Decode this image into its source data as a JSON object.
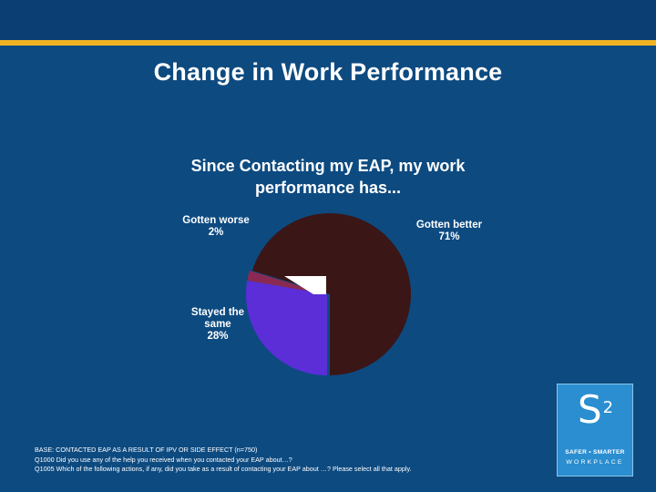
{
  "slide": {
    "title": "Change in Work Performance",
    "footnotes": [
      "BASE: CONTACTED EAP AS A RESULT OF IPV OR SIDE EFFECT (n=750)",
      "Q1000  Did you use any of the help you received when you contacted your EAP about…?",
      "Q1005  Which of the following actions, if any, did you take as a result of contacting your EAP about …?  Please select all that apply."
    ],
    "logo": {
      "mark": "S",
      "superscript": "2",
      "line1": "SAFER • SMARTER",
      "line2": "WORKPLACE"
    }
  },
  "colors": {
    "background": "#0d4a80",
    "accent_line": "#f0b323",
    "better": "#3a1616",
    "same": "#5b2ed8",
    "worse": "#8a2a52",
    "logo_box": "#2a8ed0"
  },
  "chart_data": {
    "type": "pie",
    "title_lines": [
      "Since Contacting my EAP, my work",
      "performance has..."
    ],
    "slices": [
      {
        "id": "better",
        "label": "Gotten better",
        "pct_text": "71%",
        "value": 71
      },
      {
        "id": "same",
        "label": "Stayed the same",
        "label_lines": [
          "Stayed the",
          "same"
        ],
        "pct_text": "28%",
        "value": 28
      },
      {
        "id": "worse",
        "label": "Gotten worse",
        "pct_text": "2%",
        "value": 2
      }
    ]
  }
}
